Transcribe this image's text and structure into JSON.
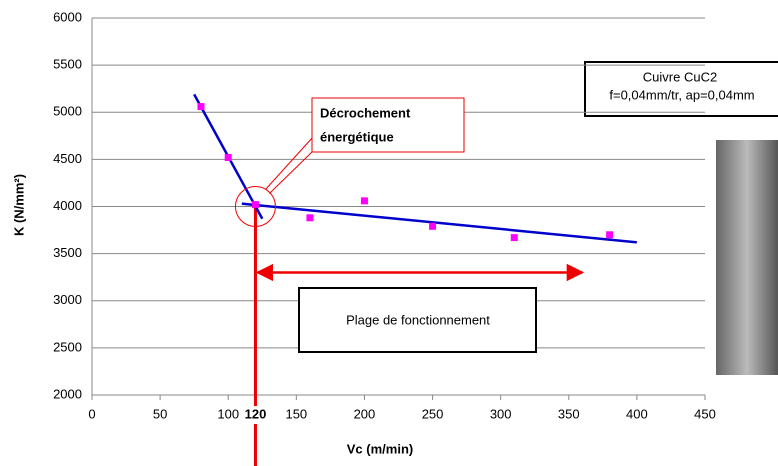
{
  "chart_data": {
    "type": "scatter",
    "x_label": "Vc (m/min)",
    "y_label": "K (N/mm²)",
    "xlim": [
      0,
      450
    ],
    "xticks": [
      0,
      50,
      100,
      150,
      200,
      250,
      300,
      350,
      400,
      450
    ],
    "ylim": [
      2000,
      6000
    ],
    "yticks": [
      2000,
      2500,
      3000,
      3500,
      4000,
      4500,
      5000,
      5500,
      6000
    ],
    "grid": true,
    "series": [
      {
        "color": "#ff00ff",
        "x": [
          80,
          100,
          120,
          160,
          200,
          250,
          310,
          380
        ],
        "values": [
          5060,
          4520,
          4020,
          3880,
          4060,
          3790,
          3670,
          3700
        ]
      }
    ],
    "trend_lines": [
      {
        "color": "#0000cc",
        "x": [
          75,
          125
        ],
        "values": [
          5190,
          3870
        ]
      },
      {
        "color": "#0000cc",
        "x": [
          110,
          400
        ],
        "values": [
          4030,
          3620
        ]
      }
    ],
    "marker_x": 120,
    "arrow": {
      "x": [
        120,
        360
      ],
      "y": 3300
    },
    "annotations": {
      "callout": [
        "Décrochement",
        "énergétique"
      ],
      "range": "Plage de fonctionnement",
      "material": [
        "Cuivre CuC2",
        "f=0,04mm/tr, ap=0,04mm"
      ]
    }
  }
}
